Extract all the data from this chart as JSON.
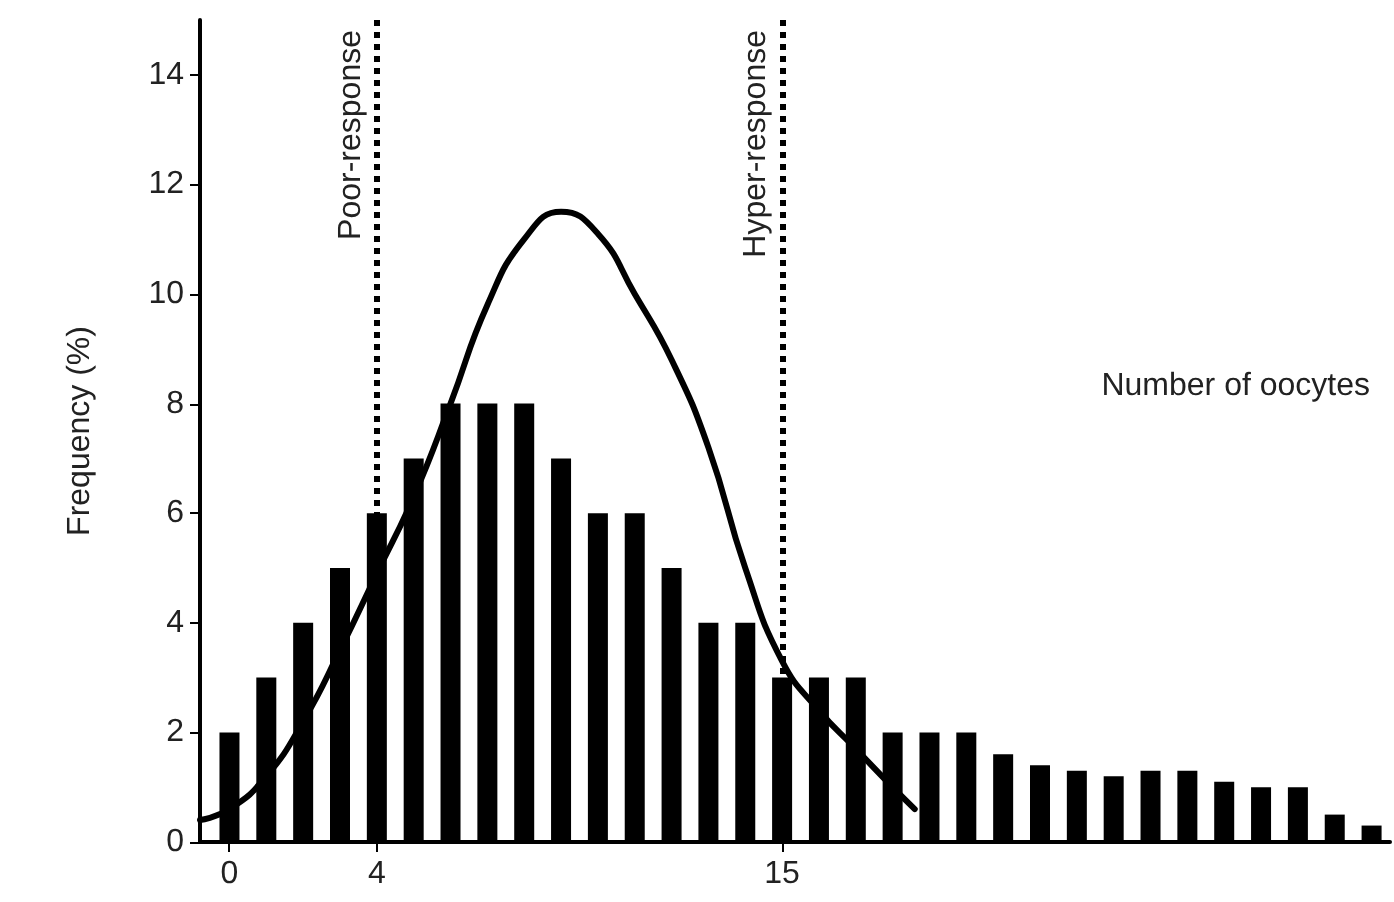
{
  "chart_data": {
    "type": "bar",
    "xlabel": "Number of oocytes",
    "ylabel": "Frequency (%)",
    "xlim": [
      -0.8,
      31.5
    ],
    "xticks": [
      0,
      4,
      15
    ],
    "ylim": [
      0,
      15
    ],
    "yticks": [
      0,
      2,
      4,
      6,
      8,
      10,
      12,
      14
    ],
    "series": [
      {
        "color": "#000000",
        "x": [
          0,
          1,
          2,
          3,
          4,
          5,
          6,
          7,
          8,
          9,
          10,
          11,
          12,
          13,
          14,
          15,
          16,
          17,
          18,
          19,
          20,
          21,
          22,
          23,
          24,
          25,
          26,
          27,
          28,
          29,
          30,
          31
        ],
        "values": [
          2,
          3,
          4,
          5,
          6,
          7,
          8,
          8,
          8,
          7,
          6,
          6,
          5,
          4,
          4,
          3,
          3,
          3,
          2,
          2,
          2,
          1.6,
          1.4,
          1.3,
          1.2,
          1.3,
          1.3,
          1.1,
          1,
          1,
          0.5,
          0.3
        ]
      },
      {
        "type": "line",
        "color": "#000000",
        "marker": "none",
        "line_style": "solid",
        "x": [
          -0.8,
          0,
          1,
          2,
          3,
          4,
          5,
          6,
          7,
          8,
          9,
          10,
          11,
          12,
          13,
          14,
          15,
          16,
          17,
          18,
          18.6
        ],
        "values": [
          0.4,
          0.6,
          1.2,
          2.2,
          3.5,
          4.9,
          6.3,
          8,
          9.8,
          11,
          11.5,
          11.1,
          10,
          8.8,
          7.2,
          5,
          3.3,
          2.4,
          1.7,
          1,
          0.6
        ]
      }
    ],
    "ref_lines": [
      {
        "axis": "x",
        "value": 4,
        "label": "Poor-response",
        "color": "#000000",
        "line_style": "dotted"
      },
      {
        "axis": "x",
        "value": 15,
        "label": "Hyper-response",
        "color": "#000000",
        "line_style": "dotted"
      }
    ],
    "grid": false
  }
}
